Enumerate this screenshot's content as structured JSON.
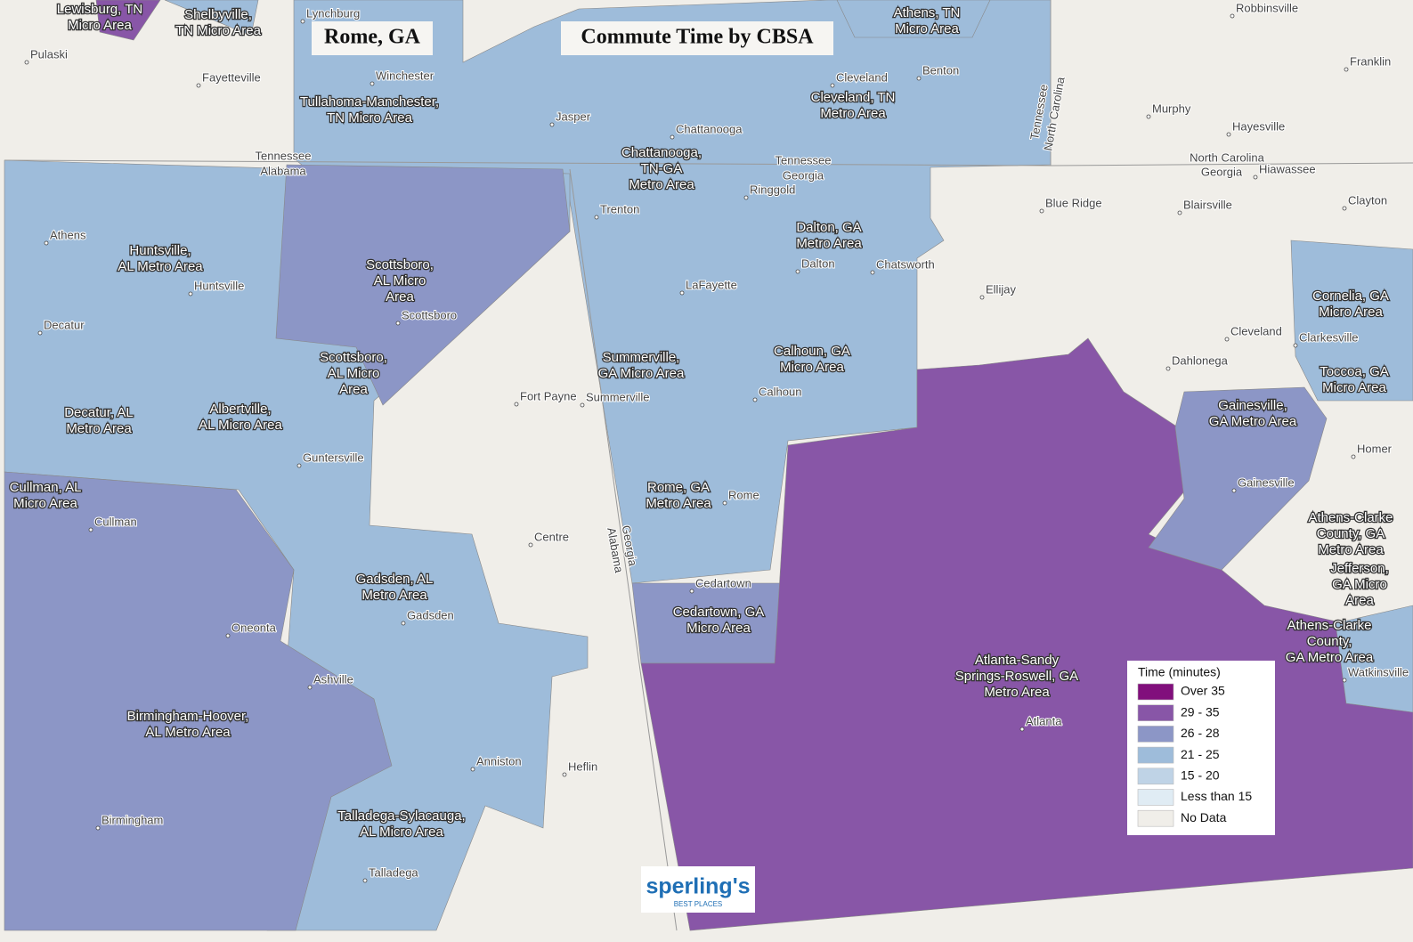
{
  "header": {
    "place": "Rome, GA",
    "title": "Commute Time by CBSA"
  },
  "regions": [
    {
      "lines": [
        "Lewisburg, TN",
        "Micro Area"
      ]
    },
    {
      "lines": [
        "Shelbyville,",
        "TN Micro Area"
      ]
    },
    {
      "lines": [
        "Athens, TN",
        "Micro Area"
      ]
    },
    {
      "lines": [
        "Tullahoma-Manchester,",
        "TN Micro Area"
      ]
    },
    {
      "lines": [
        "Chattanooga,",
        "TN-GA",
        "Metro Area"
      ]
    },
    {
      "lines": [
        "Cleveland, TN",
        "Metro Area"
      ]
    },
    {
      "lines": [
        "Huntsville,",
        "AL Metro Area"
      ]
    },
    {
      "lines": [
        "Scottsboro,",
        "AL Micro",
        "Area"
      ]
    },
    {
      "lines": [
        "Scottsboro,",
        "AL Micro",
        "Area"
      ]
    },
    {
      "lines": [
        "Decatur, AL",
        "Metro Area"
      ]
    },
    {
      "lines": [
        "Albertville,",
        "AL Micro Area"
      ]
    },
    {
      "lines": [
        "Dalton, GA",
        "Metro Area"
      ]
    },
    {
      "lines": [
        "Summerville,",
        "GA Micro Area"
      ]
    },
    {
      "lines": [
        "Calhoun, GA",
        "Micro Area"
      ]
    },
    {
      "lines": [
        "Rome, GA",
        "Metro Area"
      ]
    },
    {
      "lines": [
        "Cullman, AL",
        "Micro Area"
      ]
    },
    {
      "lines": [
        "Gadsden, AL",
        "Metro Area"
      ]
    },
    {
      "lines": [
        "Cedartown, GA",
        "Micro Area"
      ]
    },
    {
      "lines": [
        "Birmingham-Hoover,",
        "AL Metro Area"
      ]
    },
    {
      "lines": [
        "Talladega-Sylacauga,",
        "AL Micro Area"
      ]
    },
    {
      "lines": [
        "Atlanta-Sandy",
        "Springs-Roswell, GA",
        "Metro Area"
      ]
    },
    {
      "lines": [
        "Gainesville,",
        "GA Metro Area"
      ]
    },
    {
      "lines": [
        "Cornelia, GA",
        "Micro Area"
      ]
    },
    {
      "lines": [
        "Toccoa, GA",
        "Micro Area"
      ]
    },
    {
      "lines": [
        "Athens-Clarke",
        "County, GA",
        "Metro Area"
      ]
    },
    {
      "lines": [
        "Jefferson,",
        "GA Micro",
        "Area"
      ]
    },
    {
      "lines": [
        "Athens-Clarke",
        "County,",
        "GA Metro Area"
      ]
    }
  ],
  "places": [
    "Pulaski",
    "Fayetteville",
    "Winchester",
    "Lynchburg",
    "Robbinsville",
    "Franklin",
    "Jasper",
    "Chattanooga",
    "Cleveland",
    "Benton",
    "Murphy",
    "Hayesville",
    "Hiawassee",
    "Ringgold",
    "Trenton",
    "Blue Ridge",
    "Blairsville",
    "Clayton",
    "Athens",
    "Huntsville",
    "Scottsboro",
    "Decatur",
    "Dalton",
    "Chatsworth",
    "Ellijay",
    "LaFayette",
    "Cleveland",
    "Clarkesville",
    "Dahlonega",
    "Fort Payne",
    "Summerville",
    "Calhoun",
    "Guntersville",
    "Gainesville",
    "Homer",
    "Rome",
    "Cullman",
    "Centre",
    "Cedartown",
    "Gadsden",
    "Oneonta",
    "Ashville",
    "Anniston",
    "Heflin",
    "Birmingham",
    "Talladega",
    "Atlanta",
    "Watkinsville"
  ],
  "borders": [
    "Tennessee",
    "Alabama",
    "Tennessee",
    "Georgia",
    "Georgia",
    "Alabama",
    "Tennessee",
    "North Carolina",
    "North Carolina",
    "Georgia"
  ],
  "legend": {
    "title": "Time (minutes)",
    "items": [
      {
        "label": "Over 35",
        "color": "#810f7c"
      },
      {
        "label": "29 - 35",
        "color": "#8856a7"
      },
      {
        "label": "26 - 28",
        "color": "#8c96c6"
      },
      {
        "label": "21 - 25",
        "color": "#9ebcda"
      },
      {
        "label": "15 - 20",
        "color": "#bfd3e6"
      },
      {
        "label": "Less than 15",
        "color": "#e0ecf4"
      },
      {
        "label": "No Data",
        "color": "#f0eee9"
      }
    ]
  },
  "logo": {
    "name": "sperling's",
    "tagline": "BEST PLACES"
  }
}
